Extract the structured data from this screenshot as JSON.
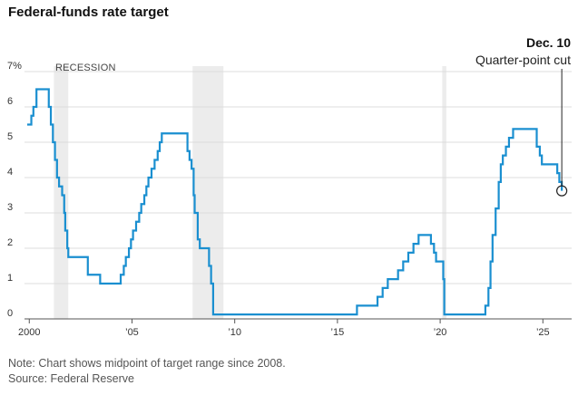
{
  "title": "Federal-funds rate target",
  "note": "Note: Chart shows midpoint of target range since 2008.",
  "source": "Source: Federal Reserve",
  "colors": {
    "line": "#1a8fd0",
    "grid": "#dddddd",
    "recession": "#ececec",
    "axis": "#555555"
  },
  "recession_label": "RECESSION",
  "annotation": {
    "date": "Dec. 10",
    "text": "Quarter-point cut"
  },
  "chart_data": {
    "type": "line",
    "title": "Federal-funds rate target",
    "xlim": [
      1999.9,
      2026.4
    ],
    "ylim": [
      0,
      7
    ],
    "y_ticks": [
      0,
      1,
      2,
      3,
      4,
      5,
      6,
      7
    ],
    "y_tick_labels": [
      "0",
      "1",
      "2",
      "3",
      "4",
      "5",
      "6",
      "7%"
    ],
    "x_ticks": [
      2000,
      2005,
      2010,
      2015,
      2020,
      2025
    ],
    "x_tick_labels": [
      "2000",
      "’05",
      "’10",
      "’15",
      "’20",
      "’25"
    ],
    "grid": true,
    "recessions": [
      [
        2001.2,
        2001.9
      ],
      [
        2007.95,
        2009.45
      ],
      [
        2020.1,
        2020.3
      ]
    ],
    "series": [
      {
        "points": [
          [
            1999.9,
            5.5
          ],
          [
            2000.1,
            5.5
          ],
          [
            2000.1,
            5.75
          ],
          [
            2000.2,
            5.75
          ],
          [
            2000.2,
            6.0
          ],
          [
            2000.35,
            6.0
          ],
          [
            2000.35,
            6.5
          ],
          [
            2000.95,
            6.5
          ],
          [
            2000.95,
            6.0
          ],
          [
            2001.05,
            6.0
          ],
          [
            2001.05,
            5.5
          ],
          [
            2001.15,
            5.5
          ],
          [
            2001.15,
            5.0
          ],
          [
            2001.25,
            5.0
          ],
          [
            2001.25,
            4.5
          ],
          [
            2001.35,
            4.5
          ],
          [
            2001.35,
            4.0
          ],
          [
            2001.45,
            4.0
          ],
          [
            2001.45,
            3.75
          ],
          [
            2001.6,
            3.75
          ],
          [
            2001.6,
            3.5
          ],
          [
            2001.7,
            3.5
          ],
          [
            2001.7,
            3.0
          ],
          [
            2001.75,
            3.0
          ],
          [
            2001.75,
            2.5
          ],
          [
            2001.85,
            2.5
          ],
          [
            2001.85,
            2.0
          ],
          [
            2001.9,
            2.0
          ],
          [
            2001.9,
            1.75
          ],
          [
            2002.85,
            1.75
          ],
          [
            2002.85,
            1.25
          ],
          [
            2003.45,
            1.25
          ],
          [
            2003.45,
            1.0
          ],
          [
            2004.45,
            1.0
          ],
          [
            2004.45,
            1.25
          ],
          [
            2004.6,
            1.25
          ],
          [
            2004.6,
            1.5
          ],
          [
            2004.7,
            1.5
          ],
          [
            2004.7,
            1.75
          ],
          [
            2004.85,
            1.75
          ],
          [
            2004.85,
            2.0
          ],
          [
            2004.95,
            2.0
          ],
          [
            2004.95,
            2.25
          ],
          [
            2005.05,
            2.25
          ],
          [
            2005.05,
            2.5
          ],
          [
            2005.2,
            2.5
          ],
          [
            2005.2,
            2.75
          ],
          [
            2005.35,
            2.75
          ],
          [
            2005.35,
            3.0
          ],
          [
            2005.45,
            3.0
          ],
          [
            2005.45,
            3.25
          ],
          [
            2005.6,
            3.25
          ],
          [
            2005.6,
            3.5
          ],
          [
            2005.7,
            3.5
          ],
          [
            2005.7,
            3.75
          ],
          [
            2005.8,
            3.75
          ],
          [
            2005.8,
            4.0
          ],
          [
            2005.95,
            4.0
          ],
          [
            2005.95,
            4.25
          ],
          [
            2006.1,
            4.25
          ],
          [
            2006.1,
            4.5
          ],
          [
            2006.25,
            4.5
          ],
          [
            2006.25,
            4.75
          ],
          [
            2006.35,
            4.75
          ],
          [
            2006.35,
            5.0
          ],
          [
            2006.45,
            5.0
          ],
          [
            2006.45,
            5.25
          ],
          [
            2007.7,
            5.25
          ],
          [
            2007.7,
            4.75
          ],
          [
            2007.8,
            4.75
          ],
          [
            2007.8,
            4.5
          ],
          [
            2007.9,
            4.5
          ],
          [
            2007.9,
            4.25
          ],
          [
            2008.0,
            4.25
          ],
          [
            2008.0,
            3.5
          ],
          [
            2008.05,
            3.5
          ],
          [
            2008.05,
            3.0
          ],
          [
            2008.2,
            3.0
          ],
          [
            2008.2,
            2.25
          ],
          [
            2008.3,
            2.25
          ],
          [
            2008.3,
            2.0
          ],
          [
            2008.75,
            2.0
          ],
          [
            2008.75,
            1.5
          ],
          [
            2008.85,
            1.5
          ],
          [
            2008.85,
            1.0
          ],
          [
            2008.95,
            1.0
          ],
          [
            2008.95,
            0.125
          ],
          [
            2015.95,
            0.125
          ],
          [
            2015.95,
            0.375
          ],
          [
            2016.95,
            0.375
          ],
          [
            2016.95,
            0.625
          ],
          [
            2017.2,
            0.625
          ],
          [
            2017.2,
            0.875
          ],
          [
            2017.45,
            0.875
          ],
          [
            2017.45,
            1.125
          ],
          [
            2017.95,
            1.125
          ],
          [
            2017.95,
            1.375
          ],
          [
            2018.2,
            1.375
          ],
          [
            2018.2,
            1.625
          ],
          [
            2018.45,
            1.625
          ],
          [
            2018.45,
            1.875
          ],
          [
            2018.7,
            1.875
          ],
          [
            2018.7,
            2.125
          ],
          [
            2018.95,
            2.125
          ],
          [
            2018.95,
            2.375
          ],
          [
            2019.55,
            2.375
          ],
          [
            2019.55,
            2.125
          ],
          [
            2019.7,
            2.125
          ],
          [
            2019.7,
            1.875
          ],
          [
            2019.8,
            1.875
          ],
          [
            2019.8,
            1.625
          ],
          [
            2020.15,
            1.625
          ],
          [
            2020.15,
            1.125
          ],
          [
            2020.2,
            1.125
          ],
          [
            2020.2,
            0.125
          ],
          [
            2022.2,
            0.125
          ],
          [
            2022.2,
            0.375
          ],
          [
            2022.35,
            0.375
          ],
          [
            2022.35,
            0.875
          ],
          [
            2022.45,
            0.875
          ],
          [
            2022.45,
            1.625
          ],
          [
            2022.55,
            1.625
          ],
          [
            2022.55,
            2.375
          ],
          [
            2022.7,
            2.375
          ],
          [
            2022.7,
            3.125
          ],
          [
            2022.85,
            3.125
          ],
          [
            2022.85,
            3.875
          ],
          [
            2022.95,
            3.875
          ],
          [
            2022.95,
            4.375
          ],
          [
            2023.05,
            4.375
          ],
          [
            2023.05,
            4.625
          ],
          [
            2023.2,
            4.625
          ],
          [
            2023.2,
            4.875
          ],
          [
            2023.35,
            4.875
          ],
          [
            2023.35,
            5.125
          ],
          [
            2023.55,
            5.125
          ],
          [
            2023.55,
            5.375
          ],
          [
            2024.7,
            5.375
          ],
          [
            2024.7,
            4.875
          ],
          [
            2024.85,
            4.875
          ],
          [
            2024.85,
            4.625
          ],
          [
            2024.95,
            4.625
          ],
          [
            2024.95,
            4.375
          ],
          [
            2025.7,
            4.375
          ],
          [
            2025.7,
            4.125
          ],
          [
            2025.8,
            4.125
          ],
          [
            2025.8,
            3.875
          ],
          [
            2025.92,
            3.875
          ],
          [
            2025.92,
            3.625
          ]
        ]
      }
    ]
  }
}
